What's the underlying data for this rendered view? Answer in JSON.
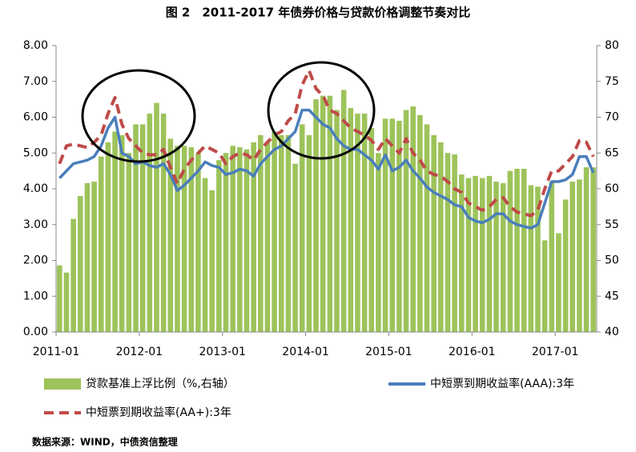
{
  "chart_data": {
    "type": "bar-line",
    "title": "图 2　2011-2017 年债券价格与贷款价格调整节奏对比",
    "source": "数据来源：WIND，中债资信整理",
    "categories": [
      "2011-01",
      null,
      null,
      null,
      null,
      null,
      null,
      null,
      null,
      null,
      null,
      null,
      "2012-01",
      null,
      null,
      null,
      null,
      null,
      null,
      null,
      null,
      null,
      null,
      null,
      "2013-01",
      null,
      null,
      null,
      null,
      null,
      null,
      null,
      null,
      null,
      null,
      null,
      "2014-01",
      null,
      null,
      null,
      null,
      null,
      null,
      null,
      null,
      null,
      null,
      null,
      "2015-01",
      null,
      null,
      null,
      null,
      null,
      null,
      null,
      null,
      null,
      null,
      null,
      "2016-01",
      null,
      null,
      null,
      null,
      null,
      null,
      null,
      null,
      null,
      null,
      null,
      "2017-01",
      null,
      null,
      null,
      null,
      null
    ],
    "ylim": [
      0,
      8
    ],
    "yticks": [
      {
        "value": 0,
        "label": "0.00"
      },
      {
        "value": 1,
        "label": "1.00"
      },
      {
        "value": 2,
        "label": "2.00"
      },
      {
        "value": 3,
        "label": "3.00"
      },
      {
        "value": 4,
        "label": "4.00"
      },
      {
        "value": 5,
        "label": "5.00"
      },
      {
        "value": 6,
        "label": "6.00"
      },
      {
        "value": 7,
        "label": "7.00"
      },
      {
        "value": 8,
        "label": "8.00"
      }
    ],
    "y2lim": [
      40,
      80
    ],
    "y2ticks": [
      40,
      45,
      50,
      55,
      60,
      65,
      70,
      75,
      80
    ],
    "series": [
      {
        "name": "贷款基准上浮比例（%,右轴）",
        "kind": "bar",
        "axis": "y2",
        "color": "#9dc35a",
        "values": [
          49.3,
          48.3,
          55.8,
          59,
          60.8,
          61,
          64.5,
          66.5,
          68,
          67.5,
          65,
          69,
          69,
          70.5,
          72,
          70.5,
          67,
          66,
          66,
          65.8,
          65,
          61.5,
          59.8,
          64,
          65,
          66,
          65.8,
          65.5,
          66.5,
          67.5,
          66.5,
          68,
          67.5,
          67.5,
          63.5,
          69,
          67.5,
          72.5,
          73,
          73,
          71,
          73.8,
          71.3,
          70.5,
          70.5,
          68.5,
          65,
          69.8,
          69.8,
          69.5,
          71,
          71.5,
          70.3,
          69,
          67.5,
          66.5,
          65,
          64.8,
          62,
          61.5,
          61.8,
          61.5,
          61.8,
          61,
          60.8,
          62.5,
          62.8,
          62.8,
          60.5,
          60.3,
          52.8,
          61,
          53.8,
          58.5,
          61,
          61.3,
          63,
          63
        ]
      },
      {
        "name": "中短票到期收益率(AAA):3年",
        "kind": "line",
        "color": "#4a7ebb",
        "dash": false,
        "values": [
          4.3,
          4.5,
          4.7,
          4.75,
          4.8,
          4.9,
          5.2,
          5.7,
          6.0,
          5.0,
          4.9,
          4.7,
          4.75,
          4.65,
          4.6,
          4.7,
          4.4,
          3.95,
          4.1,
          4.3,
          4.5,
          4.75,
          4.65,
          4.6,
          4.4,
          4.45,
          4.55,
          4.5,
          4.35,
          4.7,
          4.9,
          5.1,
          5.2,
          5.4,
          5.6,
          6.2,
          6.2,
          6.0,
          5.8,
          5.7,
          5.4,
          5.2,
          5.1,
          5.1,
          4.95,
          4.8,
          4.55,
          4.95,
          4.5,
          4.6,
          4.8,
          4.5,
          4.3,
          4.05,
          3.9,
          3.8,
          3.7,
          3.55,
          3.5,
          3.2,
          3.1,
          3.05,
          3.15,
          3.3,
          3.3,
          3.1,
          3.0,
          2.95,
          2.9,
          3.0,
          3.6,
          4.2,
          4.2,
          4.25,
          4.4,
          4.9,
          4.9,
          4.45
        ]
      },
      {
        "name": "中短票到期收益率(AA+):3年",
        "kind": "line",
        "color": "#be4b48",
        "dash": true,
        "values": [
          4.7,
          5.2,
          5.25,
          5.2,
          5.15,
          5.3,
          5.5,
          6.1,
          6.55,
          5.8,
          5.4,
          5.2,
          5.0,
          4.95,
          4.95,
          5.1,
          4.6,
          4.15,
          4.55,
          4.8,
          5.0,
          5.2,
          5.1,
          5.0,
          4.7,
          4.9,
          5.0,
          4.95,
          4.8,
          5.1,
          5.3,
          5.5,
          5.6,
          5.9,
          6.1,
          6.9,
          7.3,
          6.8,
          6.6,
          6.2,
          6.1,
          5.9,
          5.7,
          5.6,
          5.5,
          5.35,
          5.1,
          5.4,
          5.2,
          5.0,
          5.4,
          5.0,
          4.8,
          4.5,
          4.4,
          4.35,
          4.2,
          4.0,
          3.9,
          3.6,
          3.5,
          3.4,
          3.5,
          3.7,
          3.75,
          3.5,
          3.35,
          3.3,
          3.25,
          3.4,
          4.0,
          4.5,
          4.5,
          4.7,
          4.9,
          5.35,
          5.3,
          4.9
        ]
      }
    ]
  }
}
